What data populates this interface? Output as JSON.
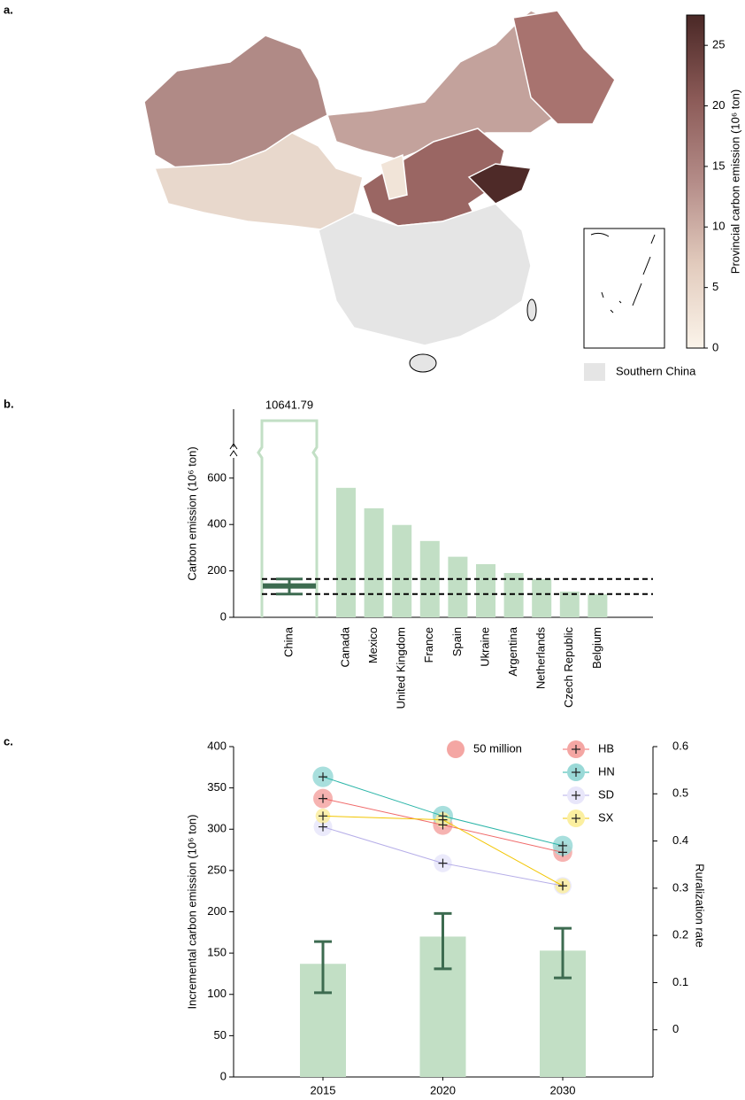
{
  "chart_data": [
    {
      "type": "choropleth",
      "panel": "a.",
      "colorbar_label": "Provincial carbon emission (10⁶ ton)",
      "colorbar_colors": [
        "#fbf4ea",
        "#e2cbbd",
        "#b48c88",
        "#8b5a57",
        "#4a2826"
      ],
      "clim": [
        0,
        27.5
      ],
      "cticks": [
        0,
        5,
        10,
        15,
        20,
        25
      ],
      "legend_label": "Southern China",
      "legend_color": "#e5e5e5"
    },
    {
      "type": "bar",
      "panel": "b.",
      "ylabel": "Carbon emission (10⁶ ton)",
      "categories": [
        "China",
        "Canada",
        "Mexico",
        "United Kingdom",
        "France",
        "Spain",
        "Ukraine",
        "Argentina",
        "Netherlands",
        "Czech Republic",
        "Belgium"
      ],
      "values": [
        10641.79,
        558,
        470,
        398,
        329,
        261,
        229,
        191,
        164,
        111,
        99
      ],
      "value_labels": [
        "10641.79",
        null,
        null,
        null,
        null,
        null,
        null,
        null,
        null,
        null,
        null
      ],
      "color": "#c2dfc5",
      "interval": {
        "value": 135,
        "low": 100,
        "high": 165,
        "color": "#3d6b50"
      },
      "ylim": [
        0,
        710
      ],
      "yticks": [
        0,
        200,
        400,
        600
      ],
      "axis_break": true
    },
    {
      "type": "bar+bubble",
      "panel": "c.",
      "ylabel": "Incremental carbon emission (10⁶ ton)",
      "y2label": "Ruralization rate",
      "categories": [
        "2015",
        "2020",
        "2030"
      ],
      "values": [
        137,
        170,
        153
      ],
      "error_low": [
        102,
        131,
        120
      ],
      "error_high": [
        164,
        198,
        180
      ],
      "color": "#c2dfc5",
      "error_color": "#3d6b50",
      "ylim": [
        0,
        400
      ],
      "yticks": [
        0,
        50,
        100,
        150,
        200,
        250,
        300,
        350,
        400
      ],
      "y2lim": [
        -0.1,
        0.6
      ],
      "y2ticks": [
        0,
        0.1,
        0.2,
        0.3,
        0.4,
        0.5,
        0.6
      ],
      "size_legend": {
        "value": 50,
        "label": "50 million",
        "color": "#f4a6a3"
      },
      "series": [
        {
          "name": "HB",
          "axis": "y2",
          "color": "#f06a6a",
          "fill": "#f4a6a3",
          "values": [
            0.49,
            0.434,
            0.376
          ],
          "sizes": [
            60,
            62,
            58
          ]
        },
        {
          "name": "HN",
          "axis": "y2",
          "color": "#2bb5a8",
          "fill": "#99d9d7",
          "values": [
            0.536,
            0.453,
            0.39
          ],
          "sizes": [
            68,
            66,
            64
          ]
        },
        {
          "name": "SD",
          "axis": "y2",
          "color": "#b6aee8",
          "fill": "#e8e6fa",
          "values": [
            0.43,
            0.353,
            0.305
          ],
          "sizes": [
            55,
            52,
            50
          ]
        },
        {
          "name": "SX",
          "axis": "y2",
          "color": "#f2c500",
          "fill": "#fbefa0",
          "values": [
            0.453,
            0.445,
            0.305
          ],
          "sizes": [
            35,
            36,
            37
          ]
        }
      ]
    }
  ]
}
